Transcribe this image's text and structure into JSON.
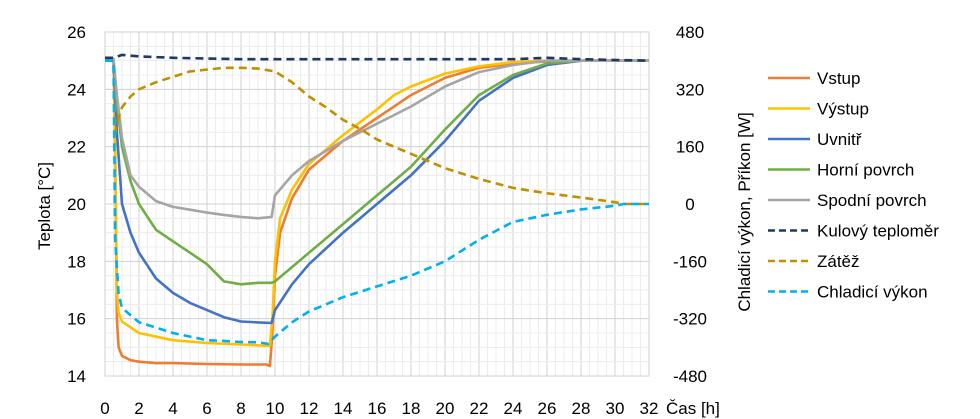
{
  "chart_data": {
    "type": "line",
    "x_label": "Čas [h]",
    "y_label_left": "Teplota [°C]",
    "y_label_right": "Chladicí výkon, Příkon [W]",
    "x_ticks": [
      "0",
      "2",
      "4",
      "6",
      "8",
      "10",
      "12",
      "14",
      "16",
      "18",
      "20",
      "22",
      "24",
      "26",
      "28",
      "30",
      "32"
    ],
    "y_ticks_left": [
      "14",
      "16",
      "18",
      "20",
      "22",
      "24",
      "26"
    ],
    "y_ticks_right": [
      "-480",
      "-320",
      "-160",
      "0",
      "160",
      "320",
      "480"
    ],
    "xlim": [
      0,
      32
    ],
    "ylim_left": [
      14,
      26
    ],
    "ylim_right": [
      -480,
      480
    ],
    "grid": true,
    "legend_position": "right",
    "series": [
      {
        "name": "Vstup",
        "axis": "left",
        "color": "#ED7D31",
        "dash": false,
        "points": [
          [
            0,
            25.05
          ],
          [
            0.5,
            25.05
          ],
          [
            0.6,
            22
          ],
          [
            0.7,
            16
          ],
          [
            0.8,
            15
          ],
          [
            1,
            14.7
          ],
          [
            1.5,
            14.55
          ],
          [
            2,
            14.5
          ],
          [
            3,
            14.45
          ],
          [
            4,
            14.45
          ],
          [
            6,
            14.42
          ],
          [
            8,
            14.4
          ],
          [
            9.5,
            14.4
          ],
          [
            9.7,
            14.35
          ],
          [
            9.85,
            15.5
          ],
          [
            10,
            17.5
          ],
          [
            10.3,
            19
          ],
          [
            11,
            20.2
          ],
          [
            12,
            21.2
          ],
          [
            14,
            22.2
          ],
          [
            16,
            23.0
          ],
          [
            18,
            23.8
          ],
          [
            20,
            24.4
          ],
          [
            22,
            24.75
          ],
          [
            24,
            24.9
          ],
          [
            26,
            24.97
          ],
          [
            28,
            25.0
          ],
          [
            32,
            25.0
          ]
        ]
      },
      {
        "name": "Výstup",
        "axis": "left",
        "color": "#FFC000",
        "dash": false,
        "points": [
          [
            0,
            25.05
          ],
          [
            0.5,
            25.05
          ],
          [
            0.6,
            22
          ],
          [
            0.7,
            17
          ],
          [
            0.8,
            16.2
          ],
          [
            1,
            15.9
          ],
          [
            2,
            15.5
          ],
          [
            4,
            15.25
          ],
          [
            6,
            15.15
          ],
          [
            8,
            15.1
          ],
          [
            9.7,
            15.05
          ],
          [
            9.85,
            16
          ],
          [
            10,
            18
          ],
          [
            10.3,
            19.5
          ],
          [
            11,
            20.5
          ],
          [
            12,
            21.4
          ],
          [
            14,
            22.4
          ],
          [
            16,
            23.3
          ],
          [
            17,
            23.8
          ],
          [
            18,
            24.1
          ],
          [
            20,
            24.55
          ],
          [
            22,
            24.8
          ],
          [
            24,
            24.95
          ],
          [
            26,
            25.0
          ],
          [
            32,
            25.0
          ]
        ]
      },
      {
        "name": "Uvnitř",
        "axis": "left",
        "color": "#4472C4",
        "dash": false,
        "points": [
          [
            0,
            25.05
          ],
          [
            0.5,
            25.05
          ],
          [
            0.7,
            22.5
          ],
          [
            1,
            20
          ],
          [
            1.5,
            19
          ],
          [
            2,
            18.3
          ],
          [
            3,
            17.4
          ],
          [
            4,
            16.9
          ],
          [
            5,
            16.55
          ],
          [
            6,
            16.3
          ],
          [
            7,
            16.05
          ],
          [
            8,
            15.9
          ],
          [
            9,
            15.87
          ],
          [
            9.8,
            15.85
          ],
          [
            10,
            16.3
          ],
          [
            11,
            17.2
          ],
          [
            12,
            17.9
          ],
          [
            14,
            19.0
          ],
          [
            16,
            20.0
          ],
          [
            18,
            21.0
          ],
          [
            20,
            22.2
          ],
          [
            22,
            23.6
          ],
          [
            24,
            24.4
          ],
          [
            26,
            24.85
          ],
          [
            28,
            25.0
          ],
          [
            32,
            25.0
          ]
        ]
      },
      {
        "name": "Horní povrch",
        "axis": "left",
        "color": "#70AD47",
        "dash": false,
        "points": [
          [
            0,
            25.05
          ],
          [
            0.5,
            25.05
          ],
          [
            0.7,
            23.5
          ],
          [
            1,
            22
          ],
          [
            1.5,
            20.8
          ],
          [
            2,
            20
          ],
          [
            3,
            19.1
          ],
          [
            4,
            18.7
          ],
          [
            5,
            18.3
          ],
          [
            6,
            17.9
          ],
          [
            7,
            17.3
          ],
          [
            8,
            17.2
          ],
          [
            9,
            17.25
          ],
          [
            9.8,
            17.25
          ],
          [
            10,
            17.3
          ],
          [
            11,
            17.8
          ],
          [
            12,
            18.3
          ],
          [
            14,
            19.3
          ],
          [
            16,
            20.3
          ],
          [
            18,
            21.3
          ],
          [
            20,
            22.6
          ],
          [
            22,
            23.8
          ],
          [
            24,
            24.5
          ],
          [
            26,
            24.9
          ],
          [
            28,
            25.0
          ],
          [
            32,
            25.0
          ]
        ]
      },
      {
        "name": "Spodní povrch",
        "axis": "left",
        "color": "#A5A5A5",
        "dash": false,
        "points": [
          [
            0,
            25.05
          ],
          [
            0.5,
            25.05
          ],
          [
            0.7,
            23.8
          ],
          [
            1,
            22.3
          ],
          [
            1.5,
            21
          ],
          [
            2,
            20.6
          ],
          [
            3,
            20.1
          ],
          [
            4,
            19.9
          ],
          [
            5,
            19.8
          ],
          [
            6,
            19.7
          ],
          [
            7,
            19.62
          ],
          [
            8,
            19.55
          ],
          [
            9,
            19.5
          ],
          [
            9.8,
            19.55
          ],
          [
            10,
            20.3
          ],
          [
            11,
            21
          ],
          [
            12,
            21.5
          ],
          [
            14,
            22.2
          ],
          [
            16,
            22.8
          ],
          [
            18,
            23.4
          ],
          [
            20,
            24.1
          ],
          [
            22,
            24.6
          ],
          [
            24,
            24.85
          ],
          [
            26,
            25.0
          ],
          [
            28,
            25.0
          ],
          [
            32,
            25.0
          ]
        ]
      },
      {
        "name": "Kulový teploměr",
        "axis": "left",
        "color": "#1F3864",
        "dash": true,
        "points": [
          [
            0,
            25.1
          ],
          [
            0.5,
            25.1
          ],
          [
            1,
            25.2
          ],
          [
            2,
            25.15
          ],
          [
            4,
            25.1
          ],
          [
            8,
            25.05
          ],
          [
            12,
            25.05
          ],
          [
            16,
            25.05
          ],
          [
            20,
            25.05
          ],
          [
            24,
            25.05
          ],
          [
            26,
            25.1
          ],
          [
            28,
            25.05
          ],
          [
            32,
            25.0
          ]
        ]
      },
      {
        "name": "Zátěž",
        "axis": "right",
        "color": "#BF9000",
        "dash": true,
        "points": [
          [
            0,
            400
          ],
          [
            0.5,
            400
          ],
          [
            0.6,
            200
          ],
          [
            0.8,
            240
          ],
          [
            1,
            270
          ],
          [
            1.5,
            300
          ],
          [
            2,
            320
          ],
          [
            3,
            340
          ],
          [
            4,
            355
          ],
          [
            5,
            370
          ],
          [
            6,
            375
          ],
          [
            7,
            380
          ],
          [
            8,
            380
          ],
          [
            9,
            378
          ],
          [
            10,
            370
          ],
          [
            11,
            340
          ],
          [
            12,
            300
          ],
          [
            13,
            270
          ],
          [
            14,
            235
          ],
          [
            15,
            210
          ],
          [
            16,
            180
          ],
          [
            17,
            160
          ],
          [
            18,
            140
          ],
          [
            19,
            120
          ],
          [
            20,
            100
          ],
          [
            22,
            70
          ],
          [
            24,
            45
          ],
          [
            26,
            30
          ],
          [
            28,
            18
          ],
          [
            30,
            5
          ],
          [
            30.5,
            0
          ],
          [
            32,
            0
          ]
        ]
      },
      {
        "name": "Chladicí výkon",
        "axis": "right",
        "color": "#00B0F0",
        "dash": true,
        "points": [
          [
            0,
            400
          ],
          [
            0.5,
            400
          ],
          [
            0.6,
            -100
          ],
          [
            0.8,
            -250
          ],
          [
            1,
            -290
          ],
          [
            1.5,
            -310
          ],
          [
            2,
            -330
          ],
          [
            3,
            -345
          ],
          [
            4,
            -360
          ],
          [
            5,
            -370
          ],
          [
            6,
            -380
          ],
          [
            7,
            -382
          ],
          [
            8,
            -385
          ],
          [
            9,
            -386
          ],
          [
            9.6,
            -390
          ],
          [
            10,
            -370
          ],
          [
            11,
            -330
          ],
          [
            12,
            -300
          ],
          [
            14,
            -260
          ],
          [
            16,
            -230
          ],
          [
            18,
            -200
          ],
          [
            20,
            -160
          ],
          [
            22,
            -100
          ],
          [
            24,
            -50
          ],
          [
            26,
            -30
          ],
          [
            28,
            -15
          ],
          [
            30,
            -5
          ],
          [
            30.5,
            0
          ],
          [
            32,
            0
          ]
        ]
      }
    ]
  }
}
